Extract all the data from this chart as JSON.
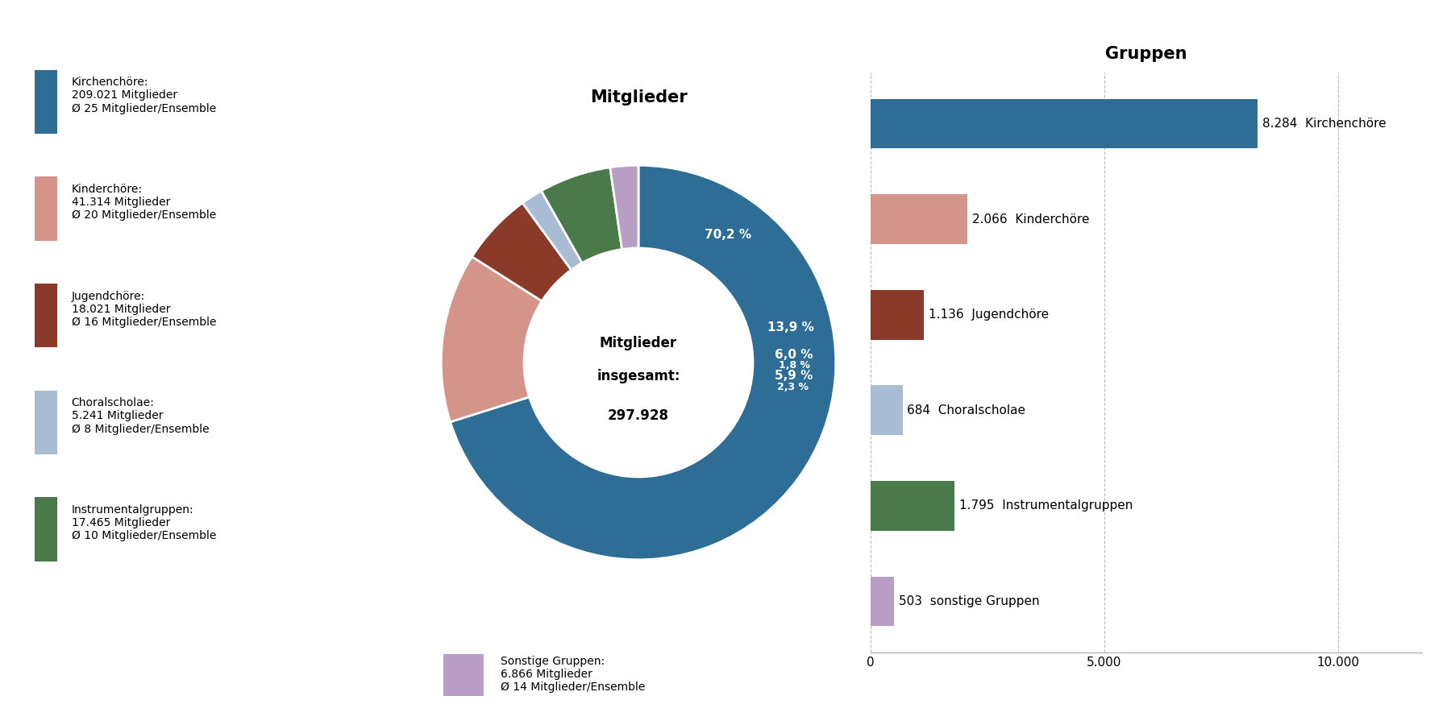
{
  "pie_title": "Mitglieder",
  "pie_center_text_line1": "Mitglieder",
  "pie_center_text_line2": "insgesamt:",
  "pie_center_text_line3": "297.928",
  "pie_values": [
    70.2,
    13.9,
    6.0,
    1.8,
    5.9,
    2.3
  ],
  "pie_colors": [
    "#2e6e96",
    "#d4948a",
    "#8b3a2a",
    "#a8bdd4",
    "#4a7a4a",
    "#b89ec4"
  ],
  "pie_labels": [
    "70,2 %",
    "13,9 %",
    "6,0 %",
    "1,8 %",
    "5,9 %",
    "2,3 %"
  ],
  "bar_title": "Gruppen",
  "bar_values": [
    8284,
    2066,
    1136,
    684,
    1795,
    503
  ],
  "bar_labels": [
    "8.284  Kirchenchöre",
    "2.066  Kinderchöre",
    "1.136  Jugendchöre",
    "684  Choralscholae",
    "1.795  Instrumentalgruppen",
    "503  sonstige Gruppen"
  ],
  "bar_colors": [
    "#2e6e96",
    "#d4948a",
    "#8b3a2a",
    "#a8bdd4",
    "#4a7a4a",
    "#b89ec4"
  ],
  "bar_xlim": [
    0,
    11800
  ],
  "bar_xticks": [
    0,
    5000,
    10000
  ],
  "bar_xticklabels": [
    "0",
    "5.000",
    "10.000"
  ],
  "legend_entries": [
    {
      "label": "Kirchenchöre:\n209.021 Mitglieder\nØ 25 Mitglieder/Ensemble",
      "color": "#2e6e96"
    },
    {
      "label": "Kinderchöre:\n41.314 Mitglieder\nØ 20 Mitglieder/Ensemble",
      "color": "#d4948a"
    },
    {
      "label": "Jugendchöre:\n18.021 Mitglieder\nØ 16 Mitglieder/Ensemble",
      "color": "#8b3a2a"
    },
    {
      "label": "Choralscholae:\n5.241 Mitglieder\nØ 8 Mitglieder/Ensemble",
      "color": "#a8bdd4"
    },
    {
      "label": "Instrumentalgruppen:\n17.465 Mitglieder\nØ 10 Mitglieder/Ensemble",
      "color": "#4a7a4a"
    }
  ],
  "bottom_legend": {
    "label": "Sonstige Gruppen:\n6.866 Mitglieder\nØ 14 Mitglieder/Ensemble",
    "color": "#b89ec4"
  },
  "background_color": "#ffffff",
  "font_size_title": 15,
  "font_size_labels": 11,
  "font_size_legend": 10,
  "font_size_center": 12
}
